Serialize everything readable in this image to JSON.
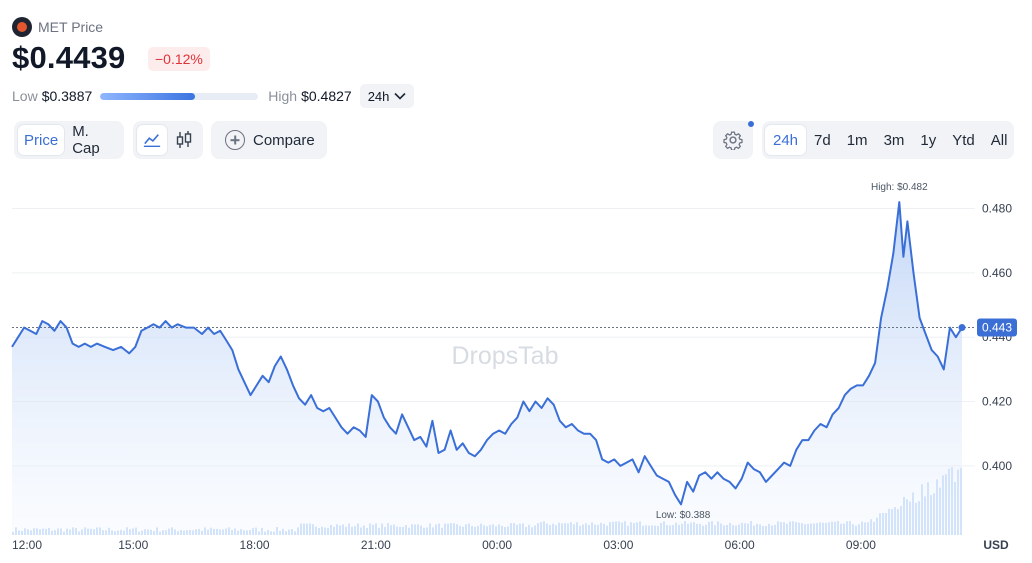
{
  "header": {
    "title": "MET Price",
    "price": "$0.4439",
    "change": "−0.12%",
    "low_label": "Low",
    "low_value": "$0.3887",
    "high_label": "High",
    "high_value": "$0.4827",
    "range_position": 0.6,
    "period": "24h"
  },
  "toolbar": {
    "price_tab": "Price",
    "mcap_tab": "M. Cap",
    "compare_label": "Compare",
    "timeframes": [
      "24h",
      "7d",
      "1m",
      "3m",
      "1y",
      "Ytd",
      "All"
    ],
    "active_timeframe": "24h"
  },
  "colors": {
    "line": "#3a6fd8",
    "accent": "#3b6fd6",
    "negative": "#e0333a",
    "volume": "#c7dcf8"
  },
  "icons": {
    "logo": "met-coin-icon",
    "dropdown": "chevron-down-icon",
    "line_chart": "line-chart-icon",
    "candles": "candlestick-icon",
    "compare": "plus-circle-icon",
    "settings": "gear-icon"
  },
  "chart_data": {
    "type": "line",
    "watermark": "DropsTab",
    "currency_label": "USD",
    "x_ticks": [
      "12:00",
      "15:00",
      "18:00",
      "21:00",
      "00:00",
      "03:00",
      "06:00",
      "09:00"
    ],
    "x_tick_hours": [
      0,
      3,
      6,
      9,
      12,
      15,
      18,
      21
    ],
    "x_range_hours": [
      0,
      23.5
    ],
    "y_ticks": [
      0.4,
      0.42,
      0.44,
      0.46,
      0.48
    ],
    "y_tick_labels": [
      "0.400",
      "0.420",
      "0.440",
      "0.460",
      "0.480"
    ],
    "y_range": [
      0.3785,
      0.4895
    ],
    "current_value": 0.443,
    "current_label": "0.443",
    "high_annotation": "High: $0.482",
    "low_annotation": "Low: $0.388",
    "high_point": {
      "x": 21.95,
      "y": 0.4827
    },
    "low_point": {
      "x": 16.6,
      "y": 0.3887
    },
    "series": [
      {
        "points": [
          [
            0.0,
            0.437
          ],
          [
            0.15,
            0.44
          ],
          [
            0.3,
            0.443
          ],
          [
            0.45,
            0.442
          ],
          [
            0.6,
            0.441
          ],
          [
            0.75,
            0.445
          ],
          [
            0.9,
            0.444
          ],
          [
            1.05,
            0.442
          ],
          [
            1.2,
            0.445
          ],
          [
            1.35,
            0.443
          ],
          [
            1.5,
            0.438
          ],
          [
            1.65,
            0.437
          ],
          [
            1.8,
            0.438
          ],
          [
            1.95,
            0.437
          ],
          [
            2.1,
            0.438
          ],
          [
            2.3,
            0.437
          ],
          [
            2.5,
            0.436
          ],
          [
            2.7,
            0.437
          ],
          [
            2.9,
            0.435
          ],
          [
            3.05,
            0.437
          ],
          [
            3.2,
            0.442
          ],
          [
            3.35,
            0.443
          ],
          [
            3.5,
            0.444
          ],
          [
            3.65,
            0.443
          ],
          [
            3.8,
            0.445
          ],
          [
            3.95,
            0.443
          ],
          [
            4.1,
            0.444
          ],
          [
            4.3,
            0.443
          ],
          [
            4.5,
            0.443
          ],
          [
            4.7,
            0.441
          ],
          [
            4.85,
            0.443
          ],
          [
            5.0,
            0.441
          ],
          [
            5.15,
            0.442
          ],
          [
            5.3,
            0.439
          ],
          [
            5.45,
            0.436
          ],
          [
            5.6,
            0.43
          ],
          [
            5.75,
            0.426
          ],
          [
            5.9,
            0.422
          ],
          [
            6.05,
            0.425
          ],
          [
            6.2,
            0.428
          ],
          [
            6.35,
            0.426
          ],
          [
            6.5,
            0.431
          ],
          [
            6.65,
            0.434
          ],
          [
            6.8,
            0.43
          ],
          [
            6.95,
            0.425
          ],
          [
            7.1,
            0.421
          ],
          [
            7.25,
            0.419
          ],
          [
            7.4,
            0.422
          ],
          [
            7.55,
            0.418
          ],
          [
            7.7,
            0.417
          ],
          [
            7.85,
            0.418
          ],
          [
            8.0,
            0.415
          ],
          [
            8.15,
            0.412
          ],
          [
            8.3,
            0.41
          ],
          [
            8.45,
            0.412
          ],
          [
            8.6,
            0.411
          ],
          [
            8.75,
            0.409
          ],
          [
            8.9,
            0.422
          ],
          [
            9.05,
            0.42
          ],
          [
            9.2,
            0.415
          ],
          [
            9.35,
            0.412
          ],
          [
            9.5,
            0.41
          ],
          [
            9.65,
            0.416
          ],
          [
            9.8,
            0.412
          ],
          [
            9.95,
            0.408
          ],
          [
            10.1,
            0.409
          ],
          [
            10.25,
            0.406
          ],
          [
            10.4,
            0.414
          ],
          [
            10.55,
            0.404
          ],
          [
            10.7,
            0.405
          ],
          [
            10.85,
            0.411
          ],
          [
            11.0,
            0.405
          ],
          [
            11.15,
            0.407
          ],
          [
            11.3,
            0.404
          ],
          [
            11.45,
            0.403
          ],
          [
            11.6,
            0.405
          ],
          [
            11.75,
            0.408
          ],
          [
            11.9,
            0.41
          ],
          [
            12.05,
            0.411
          ],
          [
            12.2,
            0.41
          ],
          [
            12.35,
            0.413
          ],
          [
            12.5,
            0.415
          ],
          [
            12.65,
            0.42
          ],
          [
            12.8,
            0.417
          ],
          [
            12.95,
            0.42
          ],
          [
            13.1,
            0.418
          ],
          [
            13.25,
            0.421
          ],
          [
            13.4,
            0.419
          ],
          [
            13.55,
            0.414
          ],
          [
            13.7,
            0.412
          ],
          [
            13.85,
            0.413
          ],
          [
            14.0,
            0.411
          ],
          [
            14.15,
            0.41
          ],
          [
            14.3,
            0.41
          ],
          [
            14.45,
            0.408
          ],
          [
            14.6,
            0.402
          ],
          [
            14.75,
            0.401
          ],
          [
            14.9,
            0.402
          ],
          [
            15.05,
            0.4
          ],
          [
            15.2,
            0.401
          ],
          [
            15.35,
            0.402
          ],
          [
            15.5,
            0.398
          ],
          [
            15.65,
            0.403
          ],
          [
            15.8,
            0.4
          ],
          [
            15.95,
            0.397
          ],
          [
            16.1,
            0.396
          ],
          [
            16.25,
            0.395
          ],
          [
            16.4,
            0.391
          ],
          [
            16.55,
            0.388
          ],
          [
            16.7,
            0.395
          ],
          [
            16.85,
            0.392
          ],
          [
            17.0,
            0.397
          ],
          [
            17.15,
            0.398
          ],
          [
            17.3,
            0.396
          ],
          [
            17.45,
            0.398
          ],
          [
            17.6,
            0.396
          ],
          [
            17.75,
            0.395
          ],
          [
            17.9,
            0.393
          ],
          [
            18.05,
            0.396
          ],
          [
            18.2,
            0.401
          ],
          [
            18.35,
            0.399
          ],
          [
            18.5,
            0.398
          ],
          [
            18.65,
            0.395
          ],
          [
            18.8,
            0.397
          ],
          [
            18.95,
            0.399
          ],
          [
            19.1,
            0.401
          ],
          [
            19.25,
            0.4
          ],
          [
            19.4,
            0.405
          ],
          [
            19.55,
            0.408
          ],
          [
            19.7,
            0.408
          ],
          [
            19.85,
            0.411
          ],
          [
            20.0,
            0.413
          ],
          [
            20.15,
            0.412
          ],
          [
            20.3,
            0.416
          ],
          [
            20.45,
            0.418
          ],
          [
            20.6,
            0.422
          ],
          [
            20.75,
            0.424
          ],
          [
            20.9,
            0.425
          ],
          [
            21.05,
            0.425
          ],
          [
            21.2,
            0.428
          ],
          [
            21.35,
            0.432
          ],
          [
            21.5,
            0.446
          ],
          [
            21.65,
            0.455
          ],
          [
            21.8,
            0.466
          ],
          [
            21.95,
            0.482
          ],
          [
            22.05,
            0.465
          ],
          [
            22.15,
            0.476
          ],
          [
            22.3,
            0.46
          ],
          [
            22.45,
            0.446
          ],
          [
            22.6,
            0.441
          ],
          [
            22.75,
            0.436
          ],
          [
            22.9,
            0.434
          ],
          [
            23.05,
            0.43
          ],
          [
            23.2,
            0.443
          ],
          [
            23.35,
            0.44
          ],
          [
            23.5,
            0.443
          ]
        ]
      }
    ]
  }
}
